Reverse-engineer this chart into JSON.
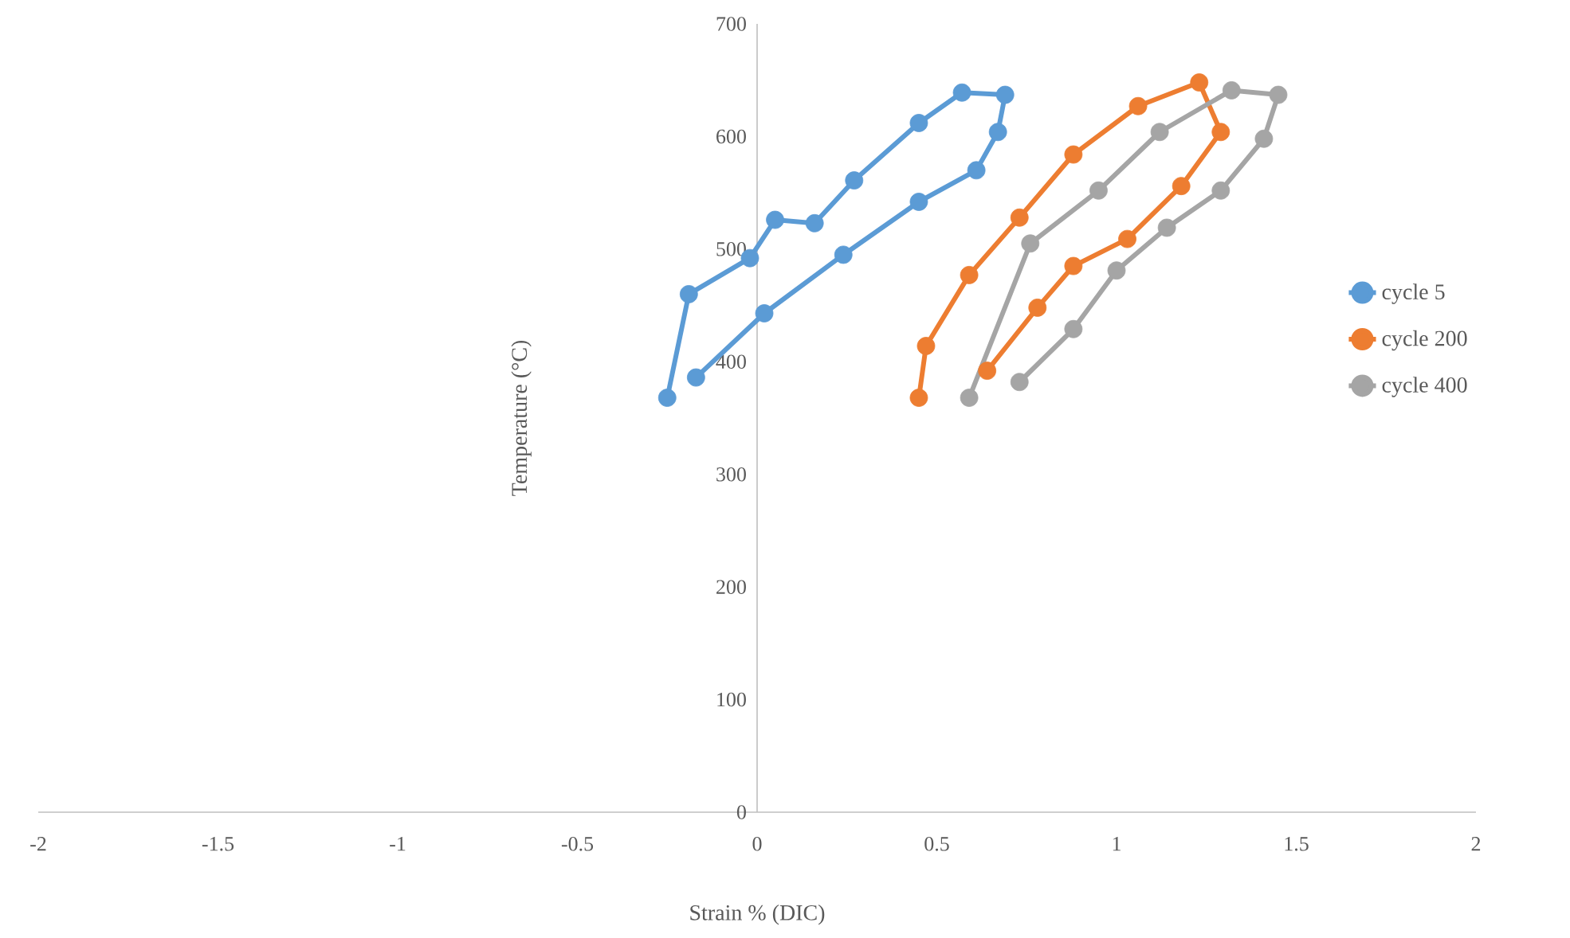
{
  "chart_data": {
    "type": "line",
    "xlabel": "Strain % (DIC)",
    "ylabel": "Temperature (°C)",
    "xlim": [
      -2,
      2
    ],
    "ylim": [
      0,
      700
    ],
    "xticks": [
      -2,
      -1.5,
      -1,
      -0.5,
      0,
      0.5,
      1,
      1.5,
      2
    ],
    "yticks": [
      0,
      100,
      200,
      300,
      400,
      500,
      600,
      700
    ],
    "grid": false,
    "legend": "right",
    "marker": "circle",
    "line_style": "solid",
    "series": [
      {
        "name": "cycle 5",
        "color": "#5b9bd5",
        "x": [
          -0.25,
          -0.19,
          -0.02,
          0.05,
          0.16,
          0.27,
          0.45,
          0.57,
          0.69,
          0.67,
          0.61,
          0.45,
          0.24,
          0.02,
          -0.17
        ],
        "values": [
          368,
          460,
          492,
          526,
          523,
          561,
          612,
          639,
          637,
          604,
          570,
          542,
          495,
          443,
          386
        ]
      },
      {
        "name": "cycle 200",
        "color": "#ed7d31",
        "x": [
          0.45,
          0.47,
          0.59,
          0.73,
          0.88,
          1.06,
          1.23,
          1.29,
          1.18,
          1.03,
          0.88,
          0.78,
          0.64
        ],
        "values": [
          368,
          414,
          477,
          528,
          584,
          627,
          648,
          604,
          556,
          509,
          485,
          448,
          392
        ]
      },
      {
        "name": "cycle 400",
        "color": "#a5a5a5",
        "x": [
          0.59,
          0.76,
          0.95,
          1.12,
          1.32,
          1.45,
          1.41,
          1.29,
          1.14,
          1.0,
          0.88,
          0.73
        ],
        "values": [
          368,
          505,
          552,
          604,
          641,
          637,
          598,
          552,
          519,
          481,
          429,
          382
        ]
      }
    ]
  }
}
